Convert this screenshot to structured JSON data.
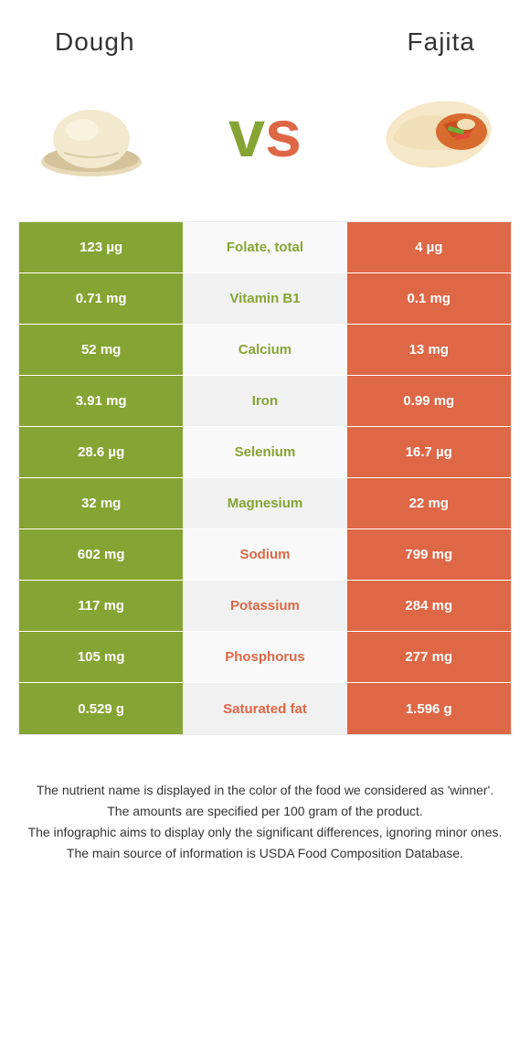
{
  "header": {
    "left_title": "Dough",
    "right_title": "Fajita"
  },
  "vs": {
    "v": "v",
    "s": "s"
  },
  "colors": {
    "left": "#86a433",
    "right": "#de6746",
    "left_text": "#ffffff",
    "right_text": "#ffffff",
    "mid_text_left_win": "#86a433",
    "mid_text_right_win": "#de6746"
  },
  "icons": {
    "left_food": "dough",
    "right_food": "fajita"
  },
  "rows": [
    {
      "nutrient": "Folate, total",
      "left": "123 µg",
      "right": "4 µg",
      "winner": "left"
    },
    {
      "nutrient": "Vitamin B1",
      "left": "0.71 mg",
      "right": "0.1 mg",
      "winner": "left"
    },
    {
      "nutrient": "Calcium",
      "left": "52 mg",
      "right": "13 mg",
      "winner": "left"
    },
    {
      "nutrient": "Iron",
      "left": "3.91 mg",
      "right": "0.99 mg",
      "winner": "left"
    },
    {
      "nutrient": "Selenium",
      "left": "28.6 µg",
      "right": "16.7 µg",
      "winner": "left"
    },
    {
      "nutrient": "Magnesium",
      "left": "32 mg",
      "right": "22 mg",
      "winner": "left"
    },
    {
      "nutrient": "Sodium",
      "left": "602 mg",
      "right": "799 mg",
      "winner": "right"
    },
    {
      "nutrient": "Potassium",
      "left": "117 mg",
      "right": "284 mg",
      "winner": "right"
    },
    {
      "nutrient": "Phosphorus",
      "left": "105 mg",
      "right": "277 mg",
      "winner": "right"
    },
    {
      "nutrient": "Saturated fat",
      "left": "0.529 g",
      "right": "1.596 g",
      "winner": "right"
    }
  ],
  "footnotes": [
    "The nutrient name is displayed in the color of the food we considered as 'winner'.",
    "The amounts are specified per 100 gram of the product.",
    "The infographic aims to display only the significant differences, ignoring minor ones.",
    "The main source of information is USDA Food Composition Database."
  ]
}
